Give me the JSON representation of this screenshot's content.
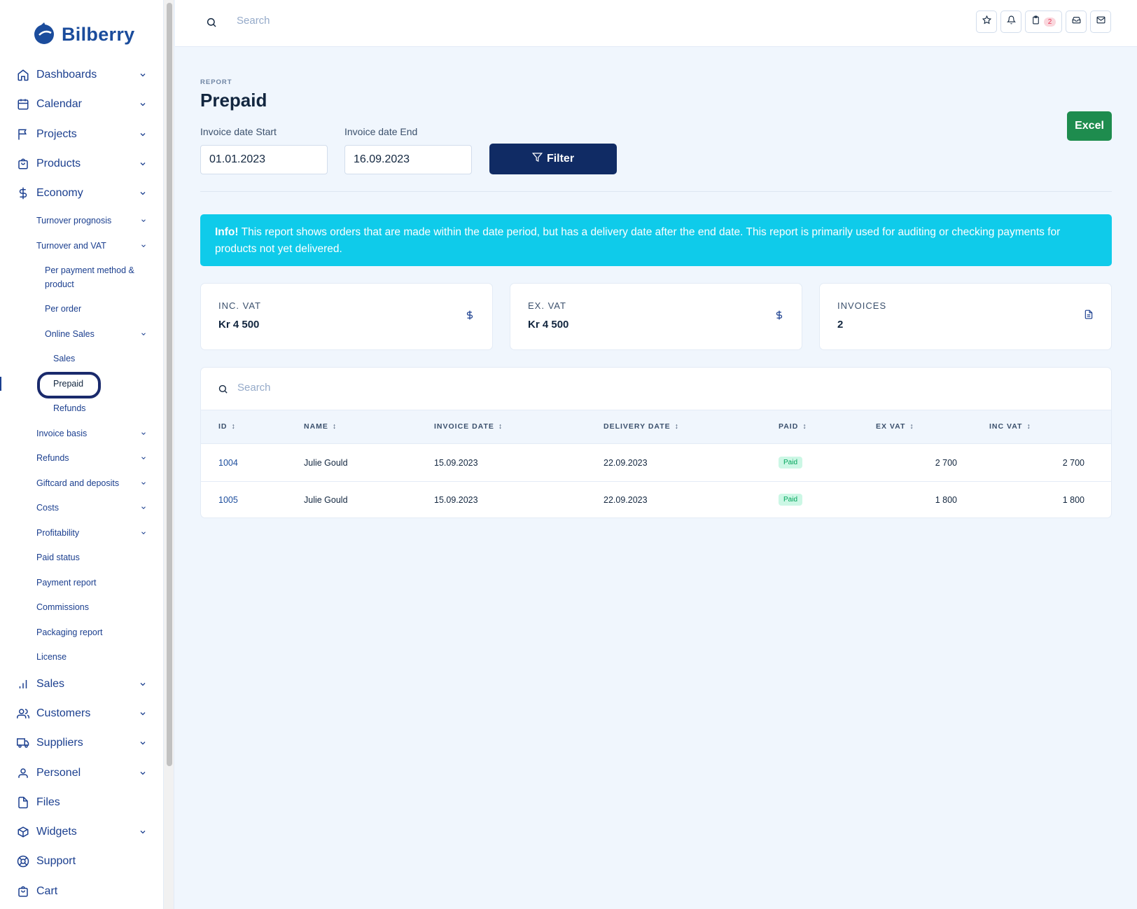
{
  "brand": {
    "name": "Bilberry"
  },
  "sidebar": {
    "main_top": [
      {
        "label": "Dashboards",
        "icon": "home-icon"
      },
      {
        "label": "Calendar",
        "icon": "calendar-icon"
      },
      {
        "label": "Projects",
        "icon": "flag-icon"
      },
      {
        "label": "Products",
        "icon": "shopping-bag-icon"
      },
      {
        "label": "Economy",
        "icon": "dollar-icon"
      }
    ],
    "economy_sub": [
      {
        "label": "Turnover prognosis"
      },
      {
        "label": "Turnover and VAT"
      },
      {
        "label": "Per payment method & product"
      },
      {
        "label": "Per order"
      },
      {
        "label": "Online Sales"
      },
      {
        "label": "Sales"
      },
      {
        "label": "Prepaid"
      },
      {
        "label": "Refunds"
      },
      {
        "label": "Invoice basis"
      },
      {
        "label": "Refunds"
      },
      {
        "label": "Giftcard and deposits"
      },
      {
        "label": "Costs"
      },
      {
        "label": "Profitability"
      },
      {
        "label": "Paid status"
      },
      {
        "label": "Payment report"
      },
      {
        "label": "Commissions"
      },
      {
        "label": "Packaging report"
      },
      {
        "label": "License"
      }
    ],
    "main_bottom": [
      {
        "label": "Sales",
        "icon": "bar-chart-icon"
      },
      {
        "label": "Customers",
        "icon": "users-icon"
      },
      {
        "label": "Suppliers",
        "icon": "truck-icon"
      },
      {
        "label": "Personel",
        "icon": "user-icon"
      },
      {
        "label": "Files",
        "icon": "file-icon"
      },
      {
        "label": "Widgets",
        "icon": "box-icon"
      },
      {
        "label": "Support",
        "icon": "life-buoy-icon"
      },
      {
        "label": "Cart",
        "icon": "shopping-bag-icon"
      }
    ]
  },
  "topbar": {
    "search_placeholder": "Search",
    "clipboard_badge": "2"
  },
  "header": {
    "pretitle": "REPORT",
    "title": "Prepaid"
  },
  "filters": {
    "start_label": "Invoice date Start",
    "start_value": "01.01.2023",
    "end_label": "Invoice date End",
    "end_value": "16.09.2023",
    "filter_label": "Filter",
    "excel_label": "Excel"
  },
  "info": {
    "strong": "Info!",
    "text": " This report shows orders that are made within the date period, but has a delivery date after the end date. This report is primarily used for auditing or checking payments for products not yet delivered."
  },
  "stats": [
    {
      "label": "INC. VAT",
      "value": "Kr 4 500",
      "icon": "dollar-icon"
    },
    {
      "label": "EX. VAT",
      "value": "Kr 4 500",
      "icon": "dollar-icon"
    },
    {
      "label": "INVOICES",
      "value": "2",
      "icon": "file-text-icon"
    }
  ],
  "table": {
    "search_placeholder": "Search",
    "columns": [
      "ID",
      "NAME",
      "INVOICE DATE",
      "DELIVERY DATE",
      "PAID",
      "EX VAT",
      "INC VAT"
    ],
    "rows": [
      {
        "id": "1004",
        "name": "Julie Gould",
        "invoice_date": "15.09.2023",
        "delivery_date": "22.09.2023",
        "paid": "Paid",
        "ex_vat": "2 700",
        "inc_vat": "2 700"
      },
      {
        "id": "1005",
        "name": "Julie Gould",
        "invoice_date": "15.09.2023",
        "delivery_date": "22.09.2023",
        "paid": "Paid",
        "ex_vat": "1 800",
        "inc_vat": "1 800"
      }
    ]
  },
  "colors": {
    "primary": "#102b64",
    "nav": "#1b3f8f",
    "info": "#0fcbea",
    "excel": "#1e8c4e",
    "paid_bg": "#ccf7e5",
    "paid_text": "#00a45a"
  }
}
